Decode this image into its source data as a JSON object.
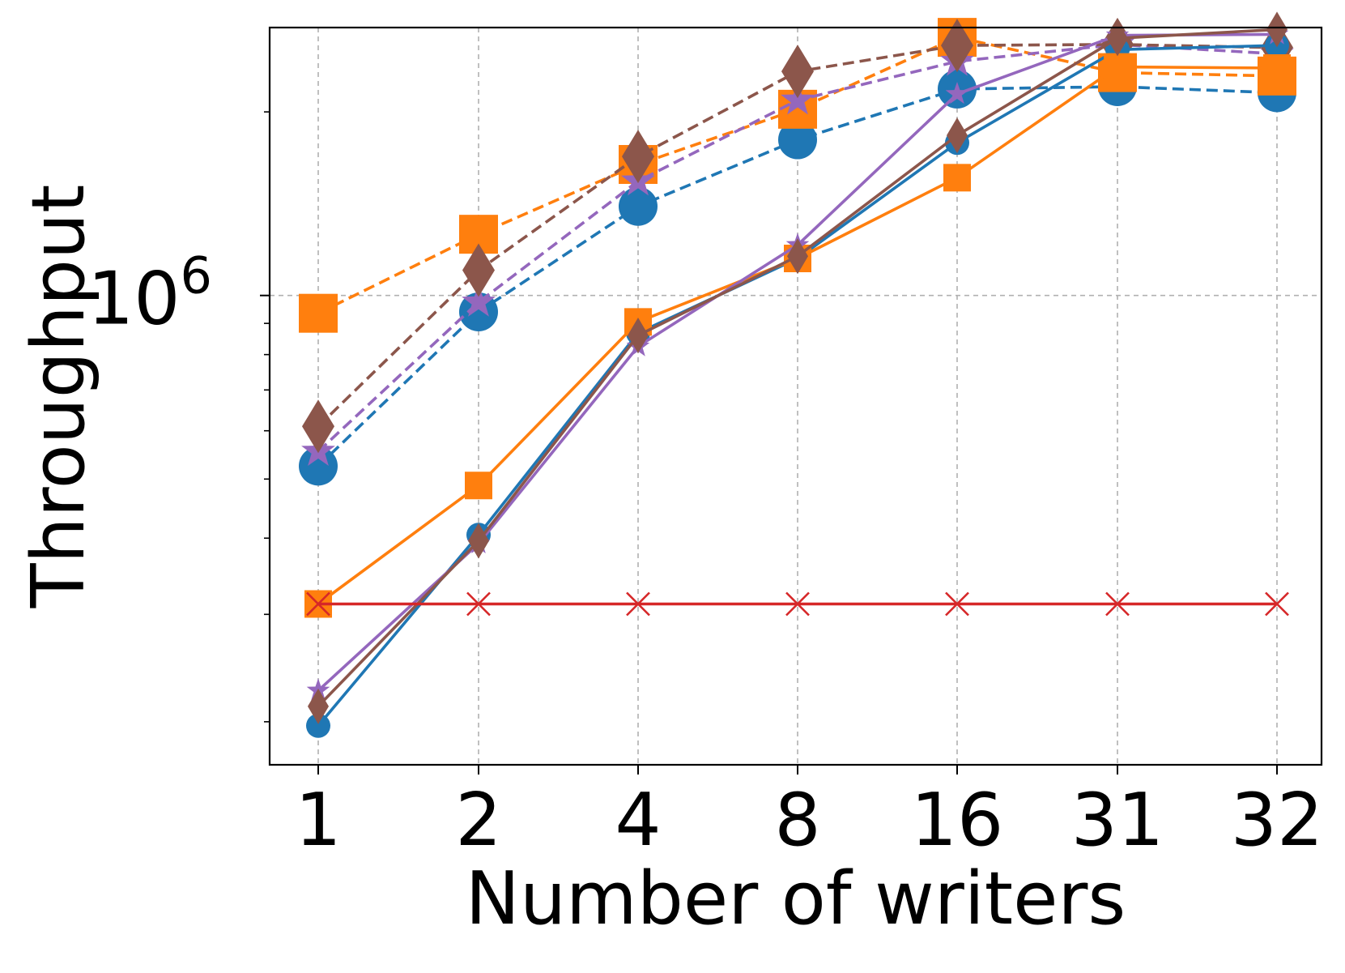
{
  "chart_data": {
    "type": "line",
    "title": "",
    "xlabel": "Number of writers",
    "ylabel": "Throughput",
    "x_scale": "categorical",
    "y_scale": "log",
    "categories": [
      "1",
      "2",
      "4",
      "8",
      "16",
      "31",
      "32"
    ],
    "ylim": [
      170000,
      2750000
    ],
    "y_major_ticks": [
      {
        "value": 1000000,
        "base": "10",
        "exp": "6"
      }
    ],
    "y_minor_ticks": [
      200000,
      300000,
      400000,
      500000,
      600000,
      700000,
      800000,
      900000,
      2000000
    ],
    "grid": true,
    "legend": "none",
    "series": [
      {
        "color": "#1f77b4",
        "linestyle": "dashed",
        "marker": "circle",
        "marker_size": "large",
        "values": [
          525000,
          940000,
          1400000,
          1800000,
          2180000,
          2200000,
          2150000
        ]
      },
      {
        "color": "#ff7f0e",
        "linestyle": "dashed",
        "marker": "square",
        "marker_size": "large",
        "values": [
          935000,
          1260000,
          1640000,
          2020000,
          2650000,
          2320000,
          2290000
        ]
      },
      {
        "color": "#9467bd",
        "linestyle": "dashed",
        "marker": "star",
        "marker_size": "large",
        "values": [
          555000,
          975000,
          1540000,
          2090000,
          2420000,
          2580000,
          2490000
        ]
      },
      {
        "color": "#8c564b",
        "linestyle": "dashed",
        "marker": "diamond",
        "marker_size": "large",
        "values": [
          610000,
          1100000,
          1690000,
          2330000,
          2570000,
          2580000,
          2550000
        ]
      },
      {
        "color": "#1f77b4",
        "linestyle": "solid",
        "marker": "circle",
        "marker_size": "small",
        "values": [
          197000,
          405000,
          868000,
          1150000,
          1780000,
          2530000,
          2570000
        ]
      },
      {
        "color": "#ff7f0e",
        "linestyle": "solid",
        "marker": "square",
        "marker_size": "small",
        "values": [
          312000,
          488000,
          905000,
          1150000,
          1560000,
          2370000,
          2360000
        ]
      },
      {
        "color": "#9467bd",
        "linestyle": "solid",
        "marker": "star",
        "marker_size": "small",
        "values": [
          225000,
          392000,
          825000,
          1210000,
          2140000,
          2670000,
          2680000
        ]
      },
      {
        "color": "#8c564b",
        "linestyle": "solid",
        "marker": "diamond",
        "marker_size": "small",
        "values": [
          212000,
          396000,
          860000,
          1160000,
          1830000,
          2640000,
          2730000
        ]
      },
      {
        "color": "#d62728",
        "linestyle": "solid",
        "marker": "x",
        "marker_size": "small",
        "values": [
          312000,
          312000,
          312000,
          312000,
          312000,
          312000,
          312000
        ]
      }
    ]
  }
}
